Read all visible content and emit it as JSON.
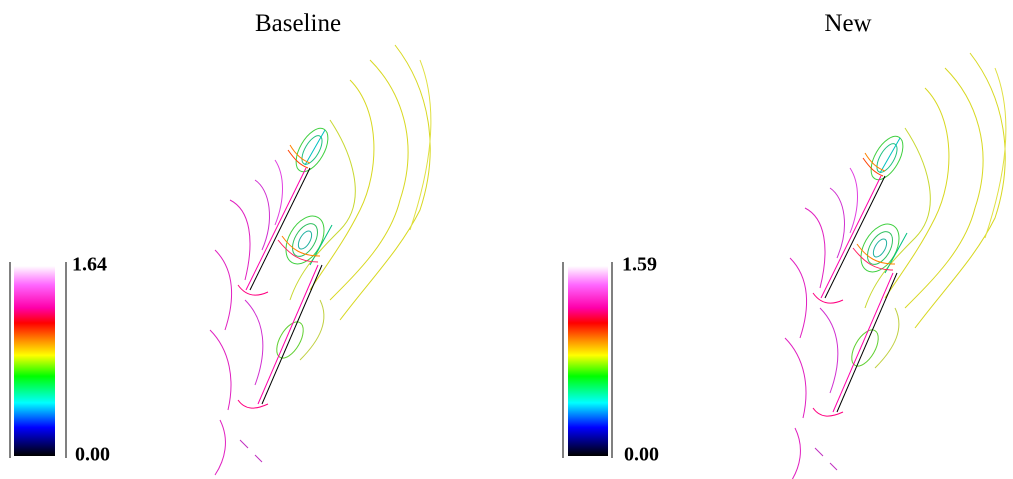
{
  "panels": [
    {
      "title": "Baseline",
      "colorbar": {
        "max_label": "1.64",
        "min_label": "0.00"
      }
    },
    {
      "title": "New",
      "colorbar": {
        "max_label": "1.59",
        "min_label": "0.00"
      }
    }
  ]
}
